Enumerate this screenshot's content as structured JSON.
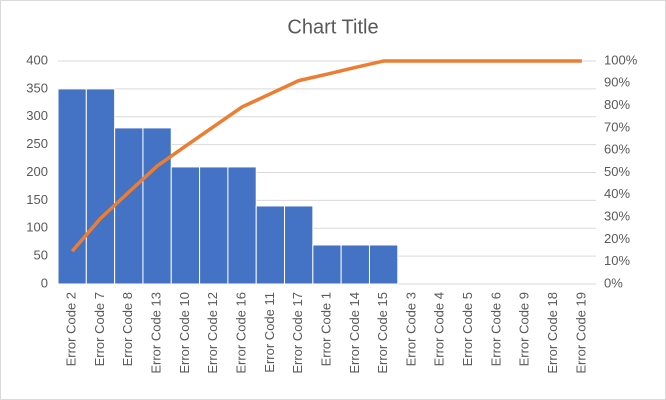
{
  "chart_data": {
    "type": "pareto",
    "title": "Chart Title",
    "categories": [
      "Error Code 2",
      "Error Code 7",
      "Error Code 8",
      "Error Code 13",
      "Error Code 10",
      "Error Code 12",
      "Error Code 16",
      "Error Code 11",
      "Error Code 17",
      "Error Code 1",
      "Error Code 14",
      "Error Code 15",
      "Error Code 3",
      "Error Code 4",
      "Error Code 5",
      "Error Code 6",
      "Error Code 9",
      "Error Code 18",
      "Error Code 19"
    ],
    "series": [
      {
        "color": "#4472c4",
        "values": [
          350,
          350,
          280,
          280,
          210,
          210,
          210,
          140,
          140,
          70,
          70,
          70,
          0,
          0,
          0,
          0,
          0,
          0,
          0
        ]
      },
      {
        "color": "#ed7d31",
        "axis": "y2",
        "values": [
          14.7,
          29.4,
          41.2,
          52.9,
          61.8,
          70.6,
          79.4,
          85.3,
          91.2,
          94.1,
          97.1,
          100,
          100,
          100,
          100,
          100,
          100,
          100,
          100
        ]
      }
    ],
    "ylim": [
      0,
      400
    ],
    "yticks": [
      0,
      50,
      100,
      150,
      200,
      250,
      300,
      350,
      400
    ],
    "y2lim": [
      0,
      100
    ],
    "y2ticks": [
      {
        "value": 0,
        "label": "0%"
      },
      {
        "value": 10,
        "label": "10%"
      },
      {
        "value": 20,
        "label": "20%"
      },
      {
        "value": 30,
        "label": "30%"
      },
      {
        "value": 40,
        "label": "40%"
      },
      {
        "value": 50,
        "label": "50%"
      },
      {
        "value": 60,
        "label": "60%"
      },
      {
        "value": 70,
        "label": "70%"
      },
      {
        "value": 80,
        "label": "80%"
      },
      {
        "value": 90,
        "label": "90%"
      },
      {
        "value": 100,
        "label": "100%"
      }
    ],
    "grid": true
  }
}
